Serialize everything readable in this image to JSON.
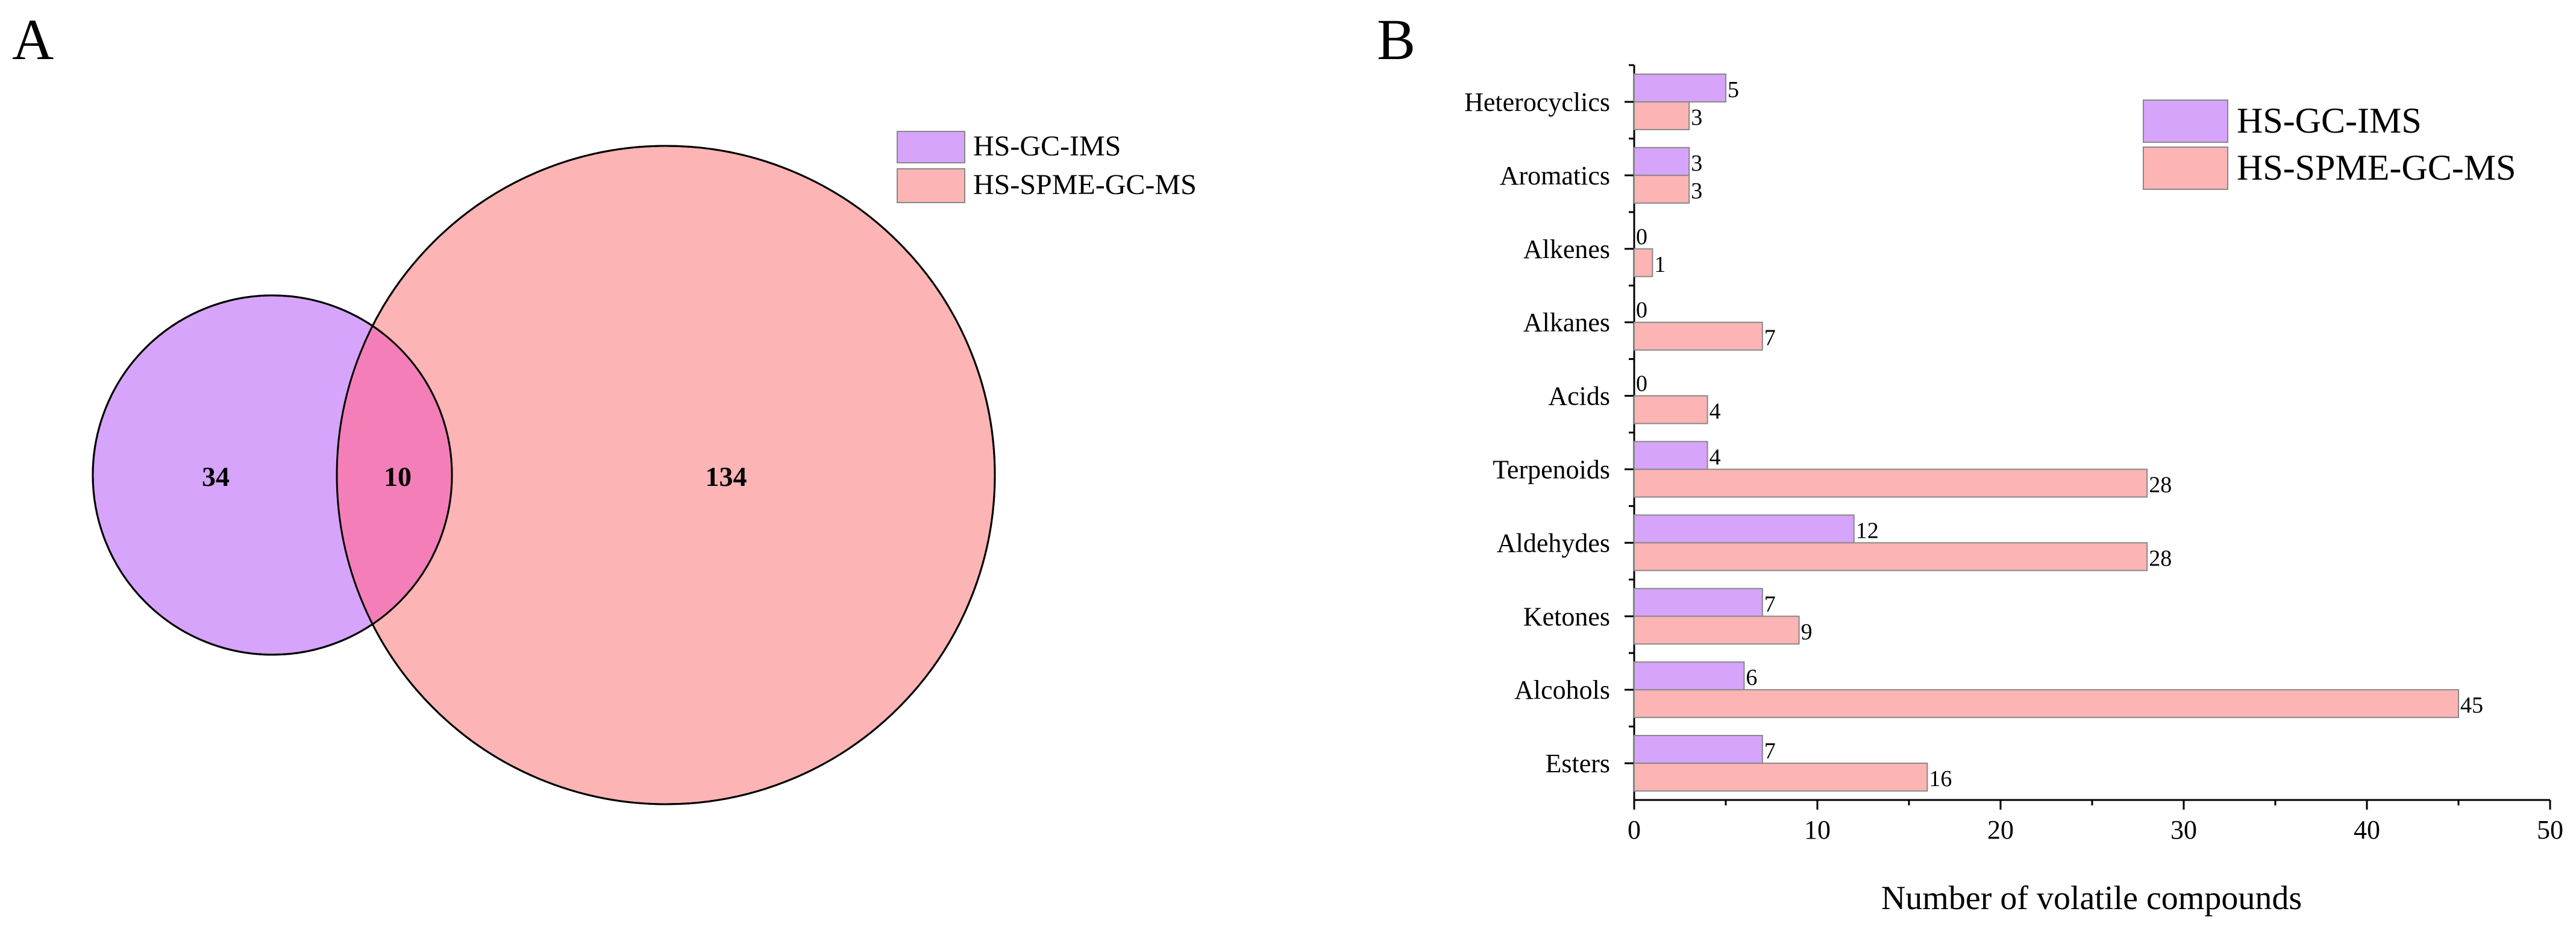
{
  "panels": {
    "a": {
      "letter": "A"
    },
    "b": {
      "letter": "B"
    }
  },
  "colors": {
    "purple": "#d6a4fb",
    "pink": "#fdb4b4",
    "overlap": "#f47fb8",
    "stroke": "#000000",
    "legend_stroke": "#888888"
  },
  "chart_data": [
    {
      "type": "venn",
      "panel": "A",
      "sets": [
        {
          "name": "HS-GC-IMS",
          "only": 34
        },
        {
          "name": "HS-SPME-GC-MS",
          "only": 134
        }
      ],
      "intersection": 10,
      "legend": [
        "HS-GC-IMS",
        "HS-SPME-GC-MS"
      ],
      "legend_position": "top-right",
      "labels": {
        "set_a_only": "34",
        "intersection": "10",
        "set_b_only": "134"
      }
    },
    {
      "type": "bar",
      "orientation": "horizontal",
      "panel": "B",
      "categories": [
        "Esters",
        "Alcohols",
        "Ketones",
        "Aldehydes",
        "Terpenoids",
        "Acids",
        "Alkanes",
        "Alkenes",
        "Aromatics",
        "Heterocyclics"
      ],
      "series": [
        {
          "name": "HS-GC-IMS",
          "values": [
            7,
            6,
            7,
            12,
            4,
            0,
            0,
            0,
            3,
            5
          ]
        },
        {
          "name": "HS-SPME-GC-MS",
          "values": [
            16,
            45,
            9,
            28,
            28,
            4,
            7,
            1,
            3,
            3
          ]
        }
      ],
      "xlabel": "Number of volatile compounds",
      "ylabel": "",
      "xlim": [
        0,
        50
      ],
      "xticks": [
        "0",
        "10",
        "20",
        "30",
        "40",
        "50"
      ],
      "legend_position": "top-right"
    }
  ]
}
